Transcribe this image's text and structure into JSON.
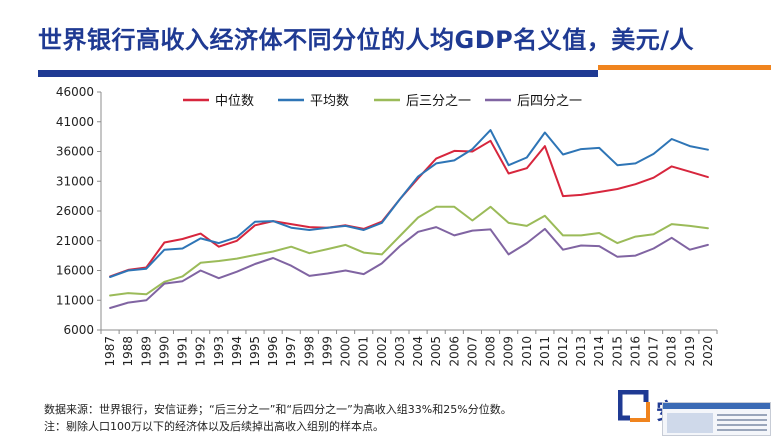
{
  "page": {
    "title": "世界银行高收入经济体不同分位的人均GDP名义值，美元/人",
    "note_source": "数据来源：世界银行，安信证券；“后三分之一”和“后四分之一”为高收入组33%和25%分位数。",
    "note_remark": "注：剔除人口100万以下的经济体以及后续掉出高收入组别的样本点。",
    "logo_text": "安",
    "brand_colors": {
      "navy": "#1f3a93",
      "orange": "#f0841e"
    }
  },
  "chart_data": {
    "type": "line",
    "title": "",
    "xlabel": "",
    "ylabel": "",
    "ylim": [
      6000,
      46000
    ],
    "yticks": [
      6000,
      11000,
      16000,
      21000,
      26000,
      31000,
      36000,
      41000,
      46000
    ],
    "grid": false,
    "legend_position": "top",
    "categories": [
      "1987",
      "1988",
      "1989",
      "1990",
      "1991",
      "1992",
      "1993",
      "1994",
      "1995",
      "1996",
      "1997",
      "1998",
      "1999",
      "2000",
      "2001",
      "2002",
      "2003",
      "2004",
      "2005",
      "2006",
      "2007",
      "2008",
      "2009",
      "2010",
      "2011",
      "2012",
      "2013",
      "2014",
      "2015",
      "2016",
      "2017",
      "2018",
      "2019",
      "2020"
    ],
    "series": [
      {
        "name": "中位数",
        "color": "#d7263d",
        "values": [
          15000,
          16100,
          16500,
          20700,
          21300,
          22200,
          20000,
          21000,
          23600,
          24300,
          23800,
          23300,
          23200,
          23600,
          23000,
          24200,
          28000,
          31500,
          34800,
          36100,
          36000,
          37800,
          32300,
          33200,
          36900,
          28500,
          28700,
          29200,
          29700,
          30500,
          31600,
          33500,
          32600,
          31700
        ]
      },
      {
        "name": "平均数",
        "color": "#2e75b6",
        "values": [
          14900,
          16000,
          16300,
          19500,
          19700,
          21400,
          20600,
          21600,
          24200,
          24300,
          23200,
          22800,
          23200,
          23500,
          22800,
          24000,
          28000,
          31800,
          34000,
          34500,
          36400,
          39600,
          33700,
          35000,
          39200,
          35500,
          36400,
          36600,
          33700,
          34000,
          35600,
          38100,
          36900,
          36300
        ]
      },
      {
        "name": "后三分之一",
        "color": "#9bbb59",
        "values": [
          11800,
          12200,
          12000,
          14100,
          15000,
          17300,
          17600,
          18000,
          18600,
          19200,
          20000,
          18900,
          19600,
          20300,
          19000,
          18700,
          21800,
          24900,
          26700,
          26700,
          24400,
          26700,
          24000,
          23500,
          25200,
          21900,
          21900,
          22300,
          20600,
          21700,
          22100,
          23800,
          23500,
          23100
        ]
      },
      {
        "name": "后四分之一",
        "color": "#8064a2",
        "values": [
          9700,
          10600,
          11000,
          13800,
          14200,
          16000,
          14700,
          15800,
          17100,
          18100,
          16800,
          15100,
          15500,
          16000,
          15400,
          17200,
          20100,
          22500,
          23300,
          21900,
          22700,
          22900,
          18700,
          20600,
          23000,
          19500,
          20200,
          20100,
          18300,
          18500,
          19700,
          21500,
          19500,
          20300
        ]
      }
    ]
  }
}
